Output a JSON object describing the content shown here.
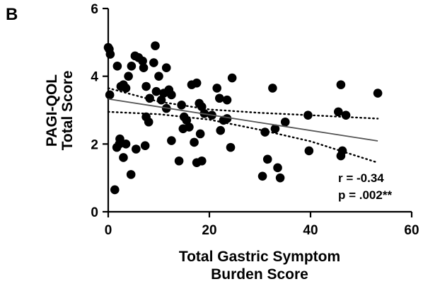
{
  "panel_label": "B",
  "chart_data": {
    "type": "scatter",
    "title": "",
    "xlabel_lines": [
      "Total Gastric Symptom",
      "Burden Score"
    ],
    "ylabel_lines": [
      "PAGI-QOL",
      "Total Score"
    ],
    "xlim": [
      0,
      60
    ],
    "ylim": [
      0,
      6
    ],
    "xticks": [
      0,
      20,
      40,
      60
    ],
    "yticks": [
      0,
      2,
      4,
      6
    ],
    "grid": false,
    "annotations": [
      "r = -0.34",
      "p = .002**"
    ],
    "fit_line": {
      "x": [
        0,
        53.3
      ],
      "y": [
        3.33,
        2.09
      ]
    },
    "ci_upper": {
      "x": [
        0,
        10,
        20,
        30,
        40,
        53.3
      ],
      "y": [
        3.65,
        3.25,
        3.02,
        2.92,
        2.85,
        2.75
      ]
    },
    "ci_lower": {
      "x": [
        0,
        10,
        20,
        30,
        40,
        53.3
      ],
      "y": [
        2.95,
        2.88,
        2.72,
        2.42,
        2.08,
        1.45
      ]
    },
    "points": [
      [
        0,
        4.85
      ],
      [
        0.2,
        4.8
      ],
      [
        0.4,
        4.65
      ],
      [
        0.3,
        3.45
      ],
      [
        1.8,
        4.3
      ],
      [
        2.5,
        3.7
      ],
      [
        3.0,
        3.75
      ],
      [
        3.5,
        3.65
      ],
      [
        4.0,
        4.0
      ],
      [
        4.6,
        4.3
      ],
      [
        5.3,
        4.6
      ],
      [
        6.0,
        4.55
      ],
      [
        6.8,
        4.45
      ],
      [
        7.0,
        4.25
      ],
      [
        7.5,
        3.7
      ],
      [
        8.2,
        3.35
      ],
      [
        9.0,
        4.4
      ],
      [
        9.3,
        4.9
      ],
      [
        9.5,
        3.55
      ],
      [
        10.0,
        4.0
      ],
      [
        10.5,
        3.3
      ],
      [
        11.0,
        3.5
      ],
      [
        11.5,
        4.25
      ],
      [
        12.0,
        3.6
      ],
      [
        12.5,
        3.45
      ],
      [
        11.5,
        3.05
      ],
      [
        7.5,
        2.8
      ],
      [
        8.0,
        2.65
      ],
      [
        3.5,
        2.0
      ],
      [
        2.2,
        2.0
      ],
      [
        1.7,
        1.9
      ],
      [
        2.3,
        2.15
      ],
      [
        3.0,
        1.6
      ],
      [
        4.5,
        1.1
      ],
      [
        1.3,
        0.65
      ],
      [
        5.5,
        1.85
      ],
      [
        7.3,
        1.95
      ],
      [
        12.5,
        2.1
      ],
      [
        14.0,
        1.5
      ],
      [
        14.5,
        3.15
      ],
      [
        15.0,
        2.8
      ],
      [
        15.5,
        2.7
      ],
      [
        14.8,
        2.45
      ],
      [
        16.0,
        2.5
      ],
      [
        16.5,
        3.75
      ],
      [
        17.5,
        3.8
      ],
      [
        18.0,
        3.2
      ],
      [
        18.5,
        3.1
      ],
      [
        19.0,
        2.9
      ],
      [
        18.2,
        2.3
      ],
      [
        17.0,
        2.05
      ],
      [
        17.5,
        1.45
      ],
      [
        18.5,
        1.5
      ],
      [
        20.5,
        2.85
      ],
      [
        21.5,
        3.65
      ],
      [
        22.0,
        3.35
      ],
      [
        22.8,
        2.7
      ],
      [
        22.2,
        2.4
      ],
      [
        23.5,
        2.75
      ],
      [
        24.5,
        3.95
      ],
      [
        23.5,
        3.3
      ],
      [
        24.2,
        1.9
      ],
      [
        30.5,
        1.05
      ],
      [
        31.0,
        2.35
      ],
      [
        31.5,
        1.55
      ],
      [
        32.5,
        3.65
      ],
      [
        33.0,
        2.45
      ],
      [
        33.5,
        1.3
      ],
      [
        34.0,
        1.0
      ],
      [
        35.0,
        2.65
      ],
      [
        39.5,
        2.85
      ],
      [
        39.7,
        1.8
      ],
      [
        45.5,
        2.95
      ],
      [
        46.0,
        3.75
      ],
      [
        46.3,
        1.8
      ],
      [
        46.0,
        1.65
      ],
      [
        47.0,
        2.85
      ],
      [
        53.3,
        3.5
      ]
    ]
  }
}
